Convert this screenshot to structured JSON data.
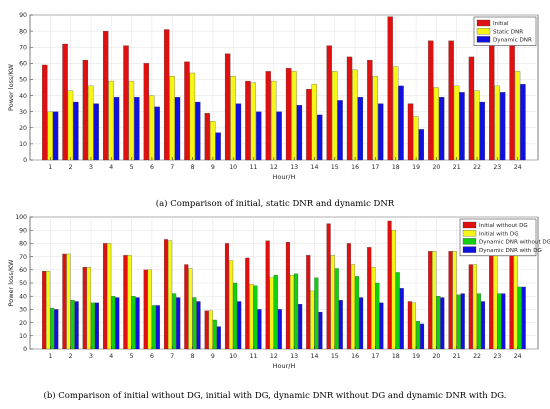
{
  "chart_data": [
    {
      "type": "bar",
      "caption": "(a)  Comparison of initial, static DNR and dynamic DNR",
      "xlabel": "Hour/H",
      "ylabel": "Power loss/KW",
      "ylim": [
        0,
        90
      ],
      "yticks": [
        0,
        10,
        20,
        30,
        40,
        50,
        60,
        70,
        80,
        90
      ],
      "grid": true,
      "legend_position": "top-right",
      "categories": [
        "1",
        "2",
        "3",
        "4",
        "5",
        "6",
        "7",
        "8",
        "9",
        "10",
        "11",
        "12",
        "13",
        "14",
        "15",
        "16",
        "17",
        "18",
        "19",
        "20",
        "21",
        "22",
        "23",
        "24"
      ],
      "series": [
        {
          "name": "Initial",
          "color": "#e01010",
          "values": [
            59,
            72,
            62,
            80,
            71,
            60,
            81,
            61,
            29,
            66,
            49,
            55,
            57,
            44,
            71,
            64,
            62,
            89,
            35,
            74,
            74,
            64,
            85,
            79
          ]
        },
        {
          "name": "Static DNR",
          "color": "#f5f51a",
          "values": [
            30,
            43,
            46,
            49,
            49,
            40,
            52,
            54,
            24,
            52,
            48,
            49,
            55,
            47,
            55,
            56,
            52,
            58,
            27,
            45,
            46,
            43,
            46,
            55
          ]
        },
        {
          "name": "Dynamic DNR",
          "color": "#1010e0",
          "values": [
            30,
            36,
            35,
            39,
            39,
            33,
            39,
            36,
            17,
            35,
            30,
            30,
            34,
            28,
            37,
            39,
            35,
            46,
            19,
            39,
            42,
            36,
            42,
            47
          ]
        }
      ]
    },
    {
      "type": "bar",
      "caption": "(b)  Comparison of initial without DG, initial with DG, dynamic DNR without DG and dynamic DNR with DG.",
      "xlabel": "Hour/H",
      "ylabel": "Power loss/KW",
      "ylim": [
        0,
        100
      ],
      "yticks": [
        0,
        10,
        20,
        30,
        40,
        50,
        60,
        70,
        80,
        90,
        100
      ],
      "grid": true,
      "legend_position": "top-right",
      "categories": [
        "1",
        "2",
        "3",
        "4",
        "5",
        "6",
        "7",
        "8",
        "9",
        "10",
        "11",
        "12",
        "13",
        "14",
        "15",
        "16",
        "17",
        "18",
        "19",
        "20",
        "21",
        "22",
        "23",
        "24"
      ],
      "series": [
        {
          "name": "Initial without DG",
          "color": "#e01010",
          "values": [
            59,
            72,
            62,
            80,
            71,
            60,
            83,
            64,
            29,
            80,
            69,
            82,
            81,
            71,
            95,
            80,
            77,
            97,
            36,
            74,
            74,
            64,
            85,
            80
          ]
        },
        {
          "name": "Initial with DG",
          "color": "#f5f51a",
          "values": [
            59,
            72,
            62,
            80,
            71,
            60,
            82,
            61,
            29,
            67,
            49,
            54,
            56,
            44,
            71,
            64,
            62,
            90,
            35,
            74,
            74,
            64,
            85,
            80
          ]
        },
        {
          "name": "Dynamic DNR without DG",
          "color": "#10d010",
          "values": [
            31,
            37,
            35,
            40,
            40,
            33,
            42,
            39,
            22,
            50,
            48,
            56,
            57,
            54,
            61,
            55,
            50,
            58,
            21,
            40,
            41,
            42,
            42,
            47
          ]
        },
        {
          "name": "Dynamic DNR with DG",
          "color": "#1010e0",
          "values": [
            30,
            36,
            35,
            39,
            39,
            33,
            39,
            36,
            17,
            36,
            30,
            30,
            34,
            28,
            37,
            39,
            35,
            46,
            19,
            39,
            42,
            36,
            42,
            47
          ]
        }
      ]
    }
  ]
}
